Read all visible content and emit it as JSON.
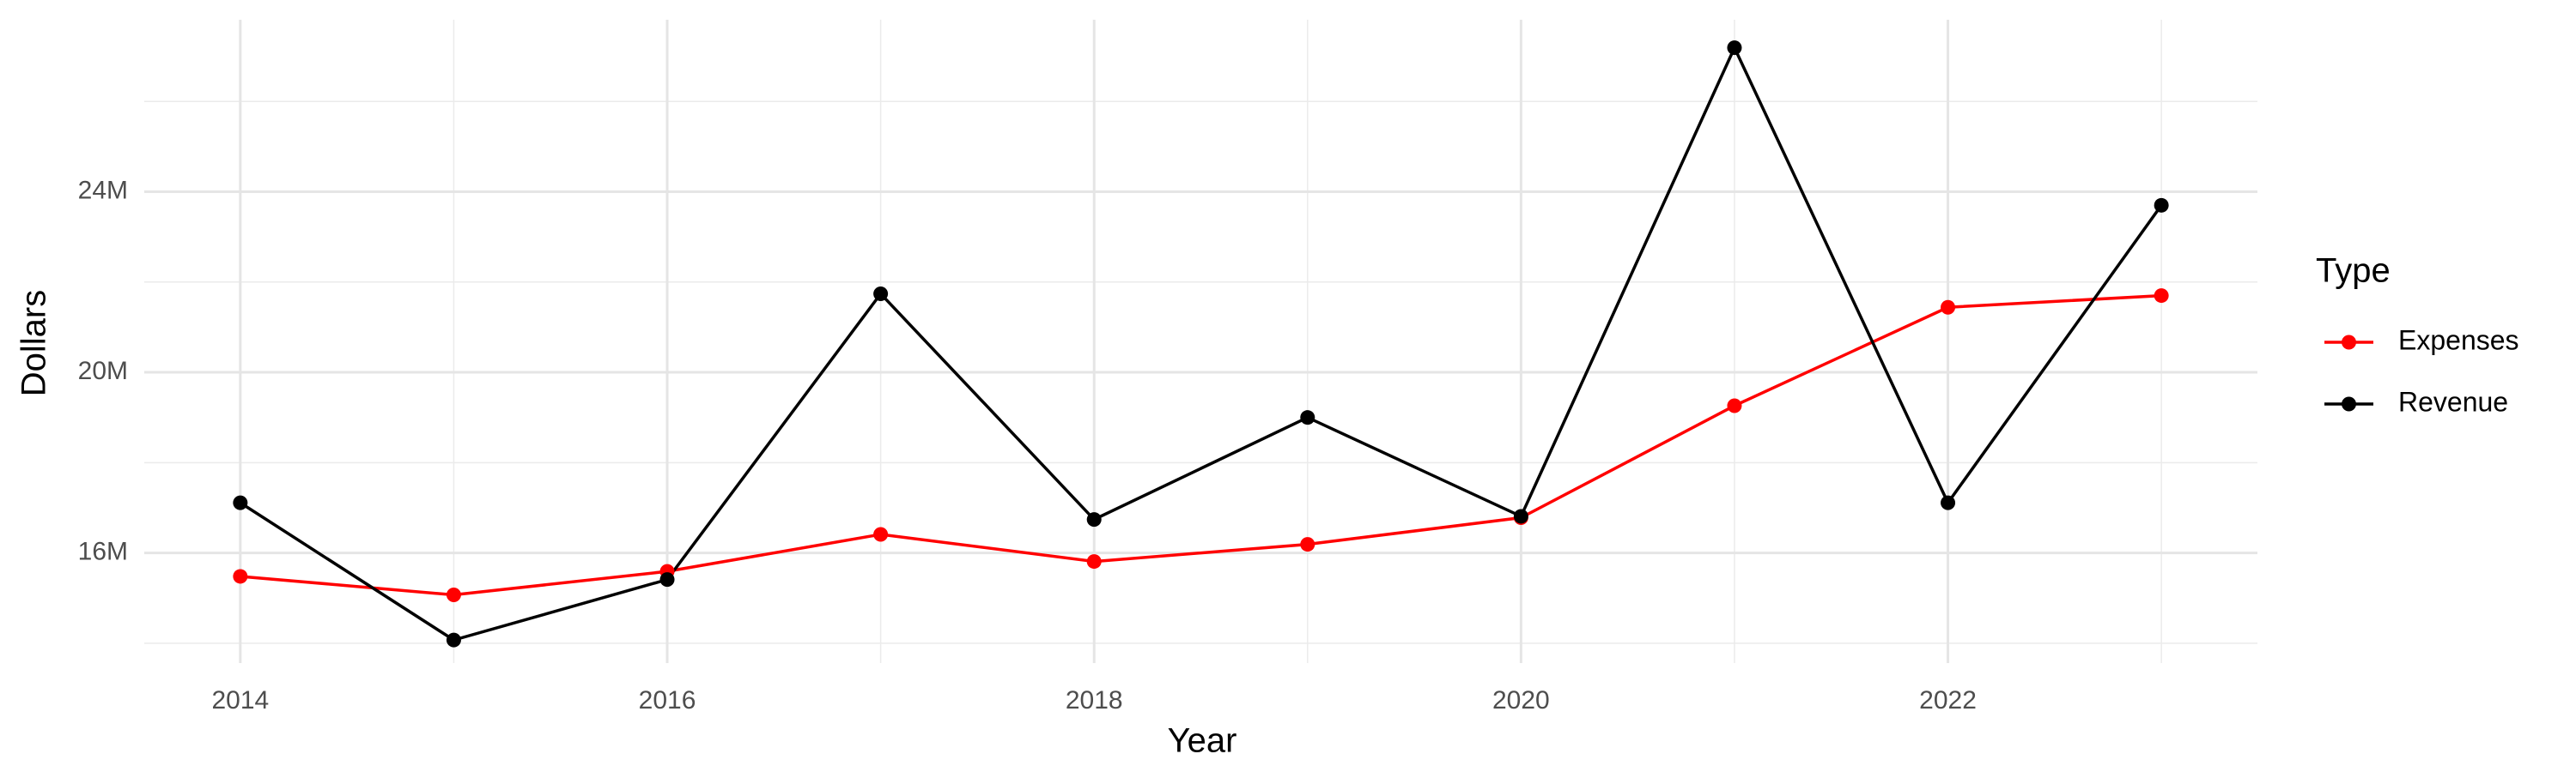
{
  "chart_data": {
    "type": "line",
    "x_label": "Year",
    "y_label": "Dollars",
    "legend_title": "Type",
    "legend": "right",
    "grid": true,
    "x": [
      2014,
      2015,
      2016,
      2017,
      2018,
      2019,
      2020,
      2021,
      2022,
      2023
    ],
    "series": [
      {
        "name": "Expenses",
        "color": "#ff0000",
        "values": [
          15480000,
          15070000,
          15590000,
          16410000,
          15810000,
          16190000,
          16780000,
          19260000,
          21440000,
          21700000
        ]
      },
      {
        "name": "Revenue",
        "color": "#000000",
        "values": [
          17110000,
          14070000,
          15410000,
          21740000,
          16740000,
          19000000,
          16810000,
          27190000,
          17110000,
          23700000
        ]
      }
    ],
    "xlim": [
      2013.55,
      2023.45
    ],
    "xticks": [
      2014,
      2016,
      2018,
      2020,
      2022
    ],
    "ylim": [
      13560000,
      27810000
    ],
    "yticks": [
      {
        "value": 16000000,
        "label": "16M"
      },
      {
        "value": 20000000,
        "label": "20M"
      },
      {
        "value": 24000000,
        "label": "24M"
      }
    ]
  }
}
